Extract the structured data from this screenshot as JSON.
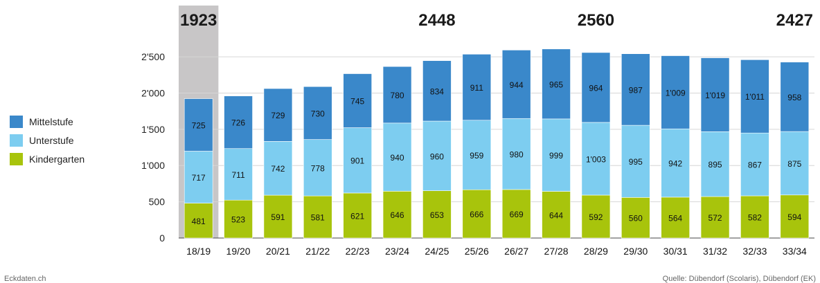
{
  "chart_data": {
    "type": "bar",
    "stacked": true,
    "categories": [
      "18/19",
      "19/20",
      "20/21",
      "21/22",
      "22/23",
      "23/24",
      "24/25",
      "25/26",
      "26/27",
      "27/28",
      "28/29",
      "29/30",
      "30/31",
      "31/32",
      "32/33",
      "33/34"
    ],
    "series": [
      {
        "name": "Kindergarten",
        "color": "#a8c40c",
        "values": [
          481,
          523,
          591,
          581,
          621,
          646,
          653,
          666,
          669,
          644,
          592,
          560,
          564,
          572,
          582,
          594
        ],
        "labels": [
          "481",
          "523",
          "591",
          "581",
          "621",
          "646",
          "653",
          "666",
          "669",
          "644",
          "592",
          "560",
          "564",
          "572",
          "582",
          "594"
        ]
      },
      {
        "name": "Unterstufe",
        "color": "#7dcdf0",
        "values": [
          717,
          711,
          742,
          778,
          901,
          940,
          960,
          959,
          980,
          999,
          1003,
          995,
          942,
          895,
          867,
          875
        ],
        "labels": [
          "717",
          "711",
          "742",
          "778",
          "901",
          "940",
          "960",
          "959",
          "980",
          "999",
          "1'003",
          "995",
          "942",
          "895",
          "867",
          "875"
        ]
      },
      {
        "name": "Mittelstufe",
        "color": "#3a88ca",
        "values": [
          725,
          726,
          729,
          730,
          745,
          780,
          834,
          911,
          944,
          965,
          964,
          987,
          1009,
          1019,
          1011,
          958
        ],
        "labels": [
          "725",
          "726",
          "729",
          "730",
          "745",
          "780",
          "834",
          "911",
          "944",
          "965",
          "964",
          "987",
          "1'009",
          "1'019",
          "1'011",
          "958"
        ]
      }
    ],
    "ylim": [
      0,
      2800
    ],
    "yticks": [
      {
        "value": 0,
        "label": "0"
      },
      {
        "value": 500,
        "label": "500"
      },
      {
        "value": 1000,
        "label": "1'000"
      },
      {
        "value": 1500,
        "label": "1'500"
      },
      {
        "value": 2000,
        "label": "2'000"
      },
      {
        "value": 2500,
        "label": "2'500"
      }
    ],
    "highlight_category": "18/19",
    "highlight_color": "#c8c6c7",
    "totals": [
      {
        "category": "18/19",
        "label": "1923"
      },
      {
        "category": "24/25",
        "label": "2448"
      },
      {
        "category": "28/29",
        "label": "2560"
      },
      {
        "category": "33/34",
        "label": "2427"
      }
    ],
    "legend_position": "left",
    "grid": true,
    "xlabel": "",
    "ylabel": ""
  },
  "legend": [
    {
      "label": "Mittelstufe",
      "color": "#3a88ca"
    },
    {
      "label": "Unterstufe",
      "color": "#7dcdf0"
    },
    {
      "label": "Kindergarten",
      "color": "#a8c40c"
    }
  ],
  "footer": {
    "left": "Eckdaten.ch",
    "right": "Quelle: Dübendorf (Scolaris), Dübendorf (EK)"
  }
}
